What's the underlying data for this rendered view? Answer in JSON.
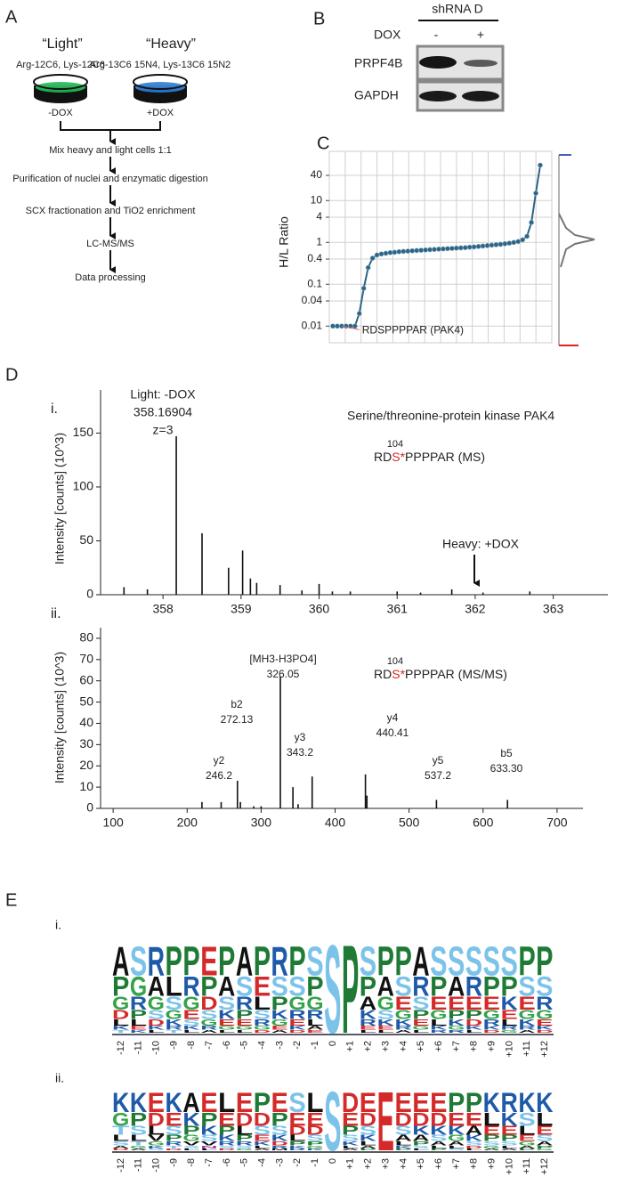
{
  "panel_a": {
    "label": "A",
    "light_title": "“Light”",
    "heavy_title": "“Heavy”",
    "light_media": "Arg-12C6, Lys-12C6",
    "heavy_media": "Arg-13C6 15N4, Lys-13C6 15N2",
    "light_condition": "-DOX",
    "heavy_condition": "+DOX",
    "steps": [
      "Mix heavy and light cells 1:1",
      "Purification of nuclei and enzymatic digestion",
      "SCX fractionation and TiO2 enrichment",
      "LC-MS/MS",
      "Data processing"
    ]
  },
  "panel_b": {
    "label": "B",
    "group": "shRNA D",
    "treatment": "DOX",
    "lanes": [
      "-",
      "+"
    ],
    "proteins": [
      "PRPF4B",
      "GAPDH"
    ]
  },
  "panel_d": {
    "label": "D"
  },
  "chart_data": [
    {
      "type": "ranked-dots",
      "panel_label": "C",
      "ylabel": "H/L Ratio",
      "log_scale": true,
      "grid": true,
      "color": "#2e6484",
      "values": [
        0.01,
        0.01,
        0.01,
        0.01,
        0.01,
        0.01,
        0.02,
        0.08,
        0.25,
        0.42,
        0.5,
        0.53,
        0.55,
        0.57,
        0.58,
        0.6,
        0.61,
        0.62,
        0.63,
        0.64,
        0.65,
        0.66,
        0.67,
        0.68,
        0.69,
        0.7,
        0.71,
        0.72,
        0.73,
        0.74,
        0.75,
        0.77,
        0.78,
        0.8,
        0.82,
        0.84,
        0.86,
        0.88,
        0.9,
        0.93,
        0.96,
        1.0,
        1.05,
        1.15,
        1.4,
        3,
        15,
        70
      ],
      "ylim": [
        0.004,
        150
      ],
      "yticks": [
        40,
        10,
        4,
        1,
        0.4,
        0.1,
        0.04,
        0.01
      ],
      "annotation": "RDSPPPPAR (PAK4)"
    },
    {
      "type": "stick",
      "sub_label": "i.",
      "ylabel": "Intensity [counts] (10^3)",
      "color": "#111",
      "x": [
        357.5,
        357.8,
        358.17,
        358.5,
        358.84,
        359.02,
        359.12,
        359.2,
        359.5,
        359.78,
        360.0,
        360.17,
        360.4,
        361.0,
        361.3,
        361.7,
        362.1,
        362.7
      ],
      "values": [
        7,
        5,
        147,
        57,
        25,
        41,
        15,
        11,
        9,
        4,
        10,
        3,
        3,
        3,
        2,
        5,
        2,
        3
      ],
      "xlim": [
        357.2,
        363.7
      ],
      "ylim": [
        0,
        190
      ],
      "xticks": [
        358,
        359,
        360,
        361,
        362,
        363
      ],
      "yticks": [
        0,
        50,
        100,
        150
      ],
      "annotations": [
        "Light: -DOX",
        "358.16904",
        "z=3"
      ],
      "protein": "Serine/threonine-protein kinase PAK4",
      "peptide": {
        "position": "104",
        "prefix": "RD",
        "site": "S*",
        "suffix": "PPPPAR (MS)"
      },
      "arrow_label": "Heavy: +DOX"
    },
    {
      "type": "stick",
      "sub_label": "ii.",
      "ylabel": "Intensity [counts] (10^3)",
      "color": "#111",
      "x": [
        220,
        246,
        268,
        272,
        290,
        300,
        326,
        343,
        350,
        369,
        441,
        443,
        537,
        633
      ],
      "values": [
        3,
        3,
        13,
        3,
        1,
        1,
        62,
        10,
        2,
        15,
        16,
        6,
        4,
        4
      ],
      "xlim": [
        83,
        735
      ],
      "ylim": [
        0,
        85
      ],
      "xticks": [
        100,
        200,
        300,
        400,
        500,
        600,
        700
      ],
      "yticks": [
        0,
        10,
        20,
        30,
        40,
        50,
        60,
        70,
        80
      ],
      "peak_labels": [
        [
          "[MH3-H3PO4]",
          "326.05"
        ],
        [
          "b2",
          "272.13"
        ],
        [
          "y2",
          "246.2"
        ],
        [
          "y3",
          "343.2"
        ],
        [
          "y4",
          "440.41"
        ],
        [
          "y5",
          "537.2"
        ],
        [
          "b5",
          "633.30"
        ]
      ],
      "peptide": {
        "position": "104",
        "prefix": "RD",
        "site": "S*",
        "suffix": "PPPPAR (MS/MS)"
      }
    }
  ],
  "panel_e": {
    "label": "E",
    "logos": [
      {
        "sub_label": "i.",
        "positions": [
          "-12",
          "-11",
          "-10",
          "-9",
          "-8",
          "-7",
          "-6",
          "-5",
          "-4",
          "-3",
          "-2",
          "-1",
          "0",
          "+1",
          "+2",
          "+3",
          "+4",
          "+5",
          "+6",
          "+7",
          "+8",
          "+9",
          "+10",
          "+11",
          "+12"
        ],
        "columns": [
          [
            "A",
            "P",
            "G",
            "D",
            "L",
            "K",
            "T"
          ],
          [
            "S",
            "G",
            "R",
            "P",
            "L",
            "E",
            "K"
          ],
          [
            "R",
            "A",
            "G",
            "S",
            "D",
            "K",
            "L"
          ],
          [
            "P",
            "L",
            "S",
            "G",
            "K",
            "R",
            "T"
          ],
          [
            "P",
            "R",
            "G",
            "E",
            "S",
            "K",
            "L"
          ],
          [
            "E",
            "P",
            "D",
            "S",
            "G",
            "R",
            "A"
          ],
          [
            "P",
            "A",
            "S",
            "K",
            "E",
            "G",
            "L"
          ],
          [
            "A",
            "S",
            "R",
            "P",
            "E",
            "G",
            "L"
          ],
          [
            "P",
            "E",
            "L",
            "S",
            "R",
            "G",
            "D"
          ],
          [
            "R",
            "S",
            "P",
            "K",
            "G",
            "E",
            "A"
          ],
          [
            "P",
            "S",
            "G",
            "R",
            "E",
            "K",
            "D"
          ],
          [
            "S",
            "P",
            "G",
            "R",
            "L",
            "A",
            "E"
          ],
          [
            "S"
          ],
          [
            "P"
          ],
          [
            "S",
            "P",
            "A",
            "K",
            "R",
            "E",
            "L"
          ],
          [
            "P",
            "A",
            "G",
            "S",
            "K",
            "E",
            "L"
          ],
          [
            "P",
            "S",
            "E",
            "G",
            "K",
            "R",
            "A"
          ],
          [
            "A",
            "R",
            "S",
            "P",
            "E",
            "G",
            "L"
          ],
          [
            "S",
            "P",
            "E",
            "G",
            "L",
            "K",
            "R"
          ],
          [
            "S",
            "A",
            "E",
            "P",
            "K",
            "G",
            "R"
          ],
          [
            "S",
            "R",
            "E",
            "P",
            "D",
            "K",
            "L"
          ],
          [
            "S",
            "P",
            "E",
            "G",
            "R",
            "K",
            "D"
          ],
          [
            "S",
            "P",
            "K",
            "E",
            "L",
            "R",
            "G"
          ],
          [
            "P",
            "S",
            "E",
            "G",
            "K",
            "R",
            "A"
          ],
          [
            "P",
            "S",
            "R",
            "G",
            "E",
            "K",
            "D"
          ]
        ]
      },
      {
        "sub_label": "ii.",
        "positions": [
          "-12",
          "-11",
          "-10",
          "-9",
          "-8",
          "-7",
          "-6",
          "-5",
          "-4",
          "-3",
          "-2",
          "-1",
          "0",
          "+1",
          "+2",
          "+3",
          "+4",
          "+5",
          "+6",
          "+7",
          "+8",
          "+9",
          "+10",
          "+11",
          "+12"
        ],
        "columns": [
          [
            "K",
            "G",
            "T",
            "L",
            "S",
            "A",
            "D"
          ],
          [
            "K",
            "P",
            "S",
            "L",
            "T",
            "G",
            "A"
          ],
          [
            "E",
            "D",
            "L",
            "V",
            "G",
            "K",
            "S"
          ],
          [
            "K",
            "E",
            "S",
            "P",
            "R",
            "T",
            "D"
          ],
          [
            "A",
            "K",
            "P",
            "G",
            "V",
            "S",
            "L"
          ],
          [
            "E",
            "P",
            "K",
            "S",
            "V",
            "N",
            "L"
          ],
          [
            "L",
            "E",
            "P",
            "K",
            "R",
            "S",
            "D"
          ],
          [
            "E",
            "D",
            "L",
            "P",
            "R",
            "S",
            "G"
          ],
          [
            "P",
            "D",
            "S",
            "E",
            "K",
            "L",
            "A"
          ],
          [
            "E",
            "P",
            "S",
            "K",
            "D",
            "R",
            "M"
          ],
          [
            "S",
            "E",
            "D",
            "L",
            "P",
            "K",
            "R"
          ],
          [
            "L",
            "E",
            "D",
            "S",
            "P",
            "G",
            "K"
          ],
          [
            "S"
          ],
          [
            "D",
            "E",
            "P",
            "S",
            "K",
            "L",
            "A"
          ],
          [
            "E",
            "D",
            "S",
            "K",
            "L",
            "A",
            "P"
          ],
          [
            "E"
          ],
          [
            "E",
            "D",
            "S",
            "A",
            "L",
            "K",
            "P"
          ],
          [
            "E",
            "D",
            "K",
            "A",
            "P",
            "S",
            "L"
          ],
          [
            "E",
            "D",
            "K",
            "S",
            "A",
            "L",
            "P"
          ],
          [
            "P",
            "E",
            "K",
            "G",
            "A",
            "L",
            "S"
          ],
          [
            "P",
            "E",
            "A",
            "K",
            "S",
            "D",
            "L"
          ],
          [
            "K",
            "L",
            "E",
            "P",
            "S",
            "G",
            "A"
          ],
          [
            "R",
            "K",
            "E",
            "P",
            "S",
            "L",
            "A"
          ],
          [
            "K",
            "S",
            "L",
            "E",
            "G",
            "A",
            "P"
          ],
          [
            "K",
            "L",
            "E",
            "S",
            "A",
            "P",
            "G"
          ]
        ]
      }
    ]
  }
}
